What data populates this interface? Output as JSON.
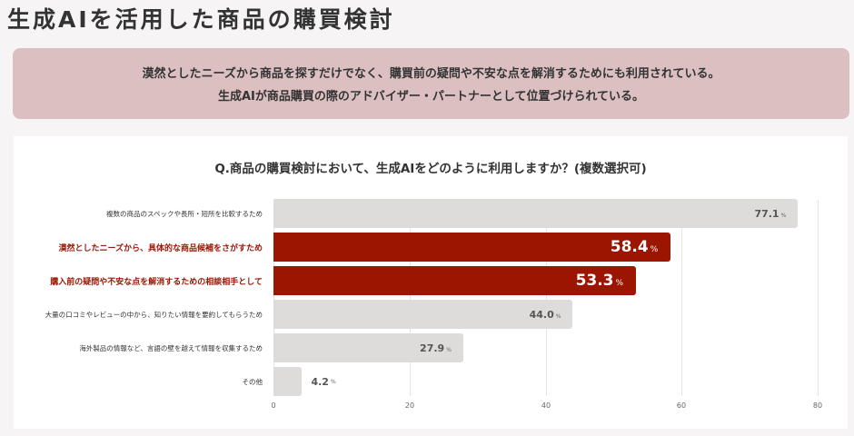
{
  "page": {
    "title": "生成AIを活用した商品の購買検討"
  },
  "summary": {
    "lines": [
      "漠然としたニーズから商品を探すだけでなく、購買前の疑問や不安な点を解消するためにも利用されている。",
      "生成AIが商品購買の際のアドバイザー・パートナーとして位置づけられている。"
    ],
    "background_color": "#dcc0c1"
  },
  "chart_data": {
    "type": "bar",
    "orientation": "horizontal",
    "title": "Q.商品の購買検討において、生成AIをどのように利用しますか？(複数選択可)",
    "categories": [
      "複数の商品のスペックや長所・短所を比較するため",
      "漠然としたニーズから、具体的な商品候補をさがすため",
      "購入前の疑問や不安な点を解消するための相談相手として",
      "大量の口コミやレビューの中から、知りたい情報を要約してもらうため",
      "海外製品の情報など、言語の壁を越えて情報を収集するため",
      "その他"
    ],
    "values": [
      77.1,
      58.4,
      53.3,
      44.0,
      27.9,
      4.2
    ],
    "value_labels": [
      "77.1",
      "58.4",
      "53.3",
      "44.0",
      "27.9",
      "4.2"
    ],
    "unit": "%",
    "highlighted": [
      false,
      true,
      true,
      false,
      false,
      false
    ],
    "xlabel": "",
    "ylabel": "",
    "xlim": [
      0,
      80
    ],
    "x_ticks": [
      "0",
      "20",
      "40",
      "60",
      "80"
    ],
    "grid": true,
    "colors": {
      "normal": "#dedcdb",
      "highlight": "#9b1500"
    }
  }
}
